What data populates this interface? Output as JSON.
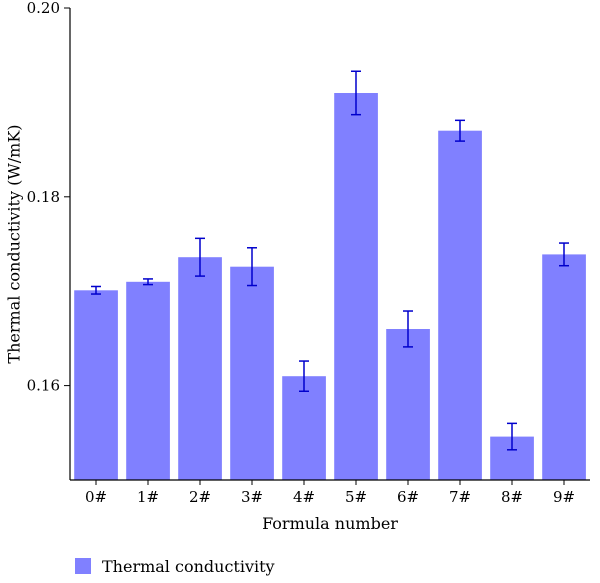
{
  "chart_data": {
    "type": "bar",
    "categories": [
      "0#",
      "1#",
      "2#",
      "3#",
      "4#",
      "5#",
      "6#",
      "7#",
      "8#",
      "9#"
    ],
    "series": [
      {
        "name": "Thermal conductivity",
        "values": [
          0.1701,
          0.171,
          0.1736,
          0.1726,
          0.161,
          0.191,
          0.166,
          0.187,
          0.1546,
          0.1739
        ],
        "errors": [
          0.0004,
          0.0003,
          0.002,
          0.002,
          0.0016,
          0.0023,
          0.0019,
          0.0011,
          0.0014,
          0.0012
        ],
        "color": "#8080ff",
        "error_color": "#0000cc"
      }
    ],
    "title": "",
    "xlabel": "Formula number",
    "ylabel": "Thermal conductivity (W/mK)",
    "ylim": [
      0.15,
      0.2
    ],
    "yticks": [
      0.16,
      0.18,
      0.2
    ],
    "ytick_labels": [
      "0.16",
      "0.18",
      "0.20"
    ],
    "grid": false,
    "legend_position": "bottom-left"
  }
}
